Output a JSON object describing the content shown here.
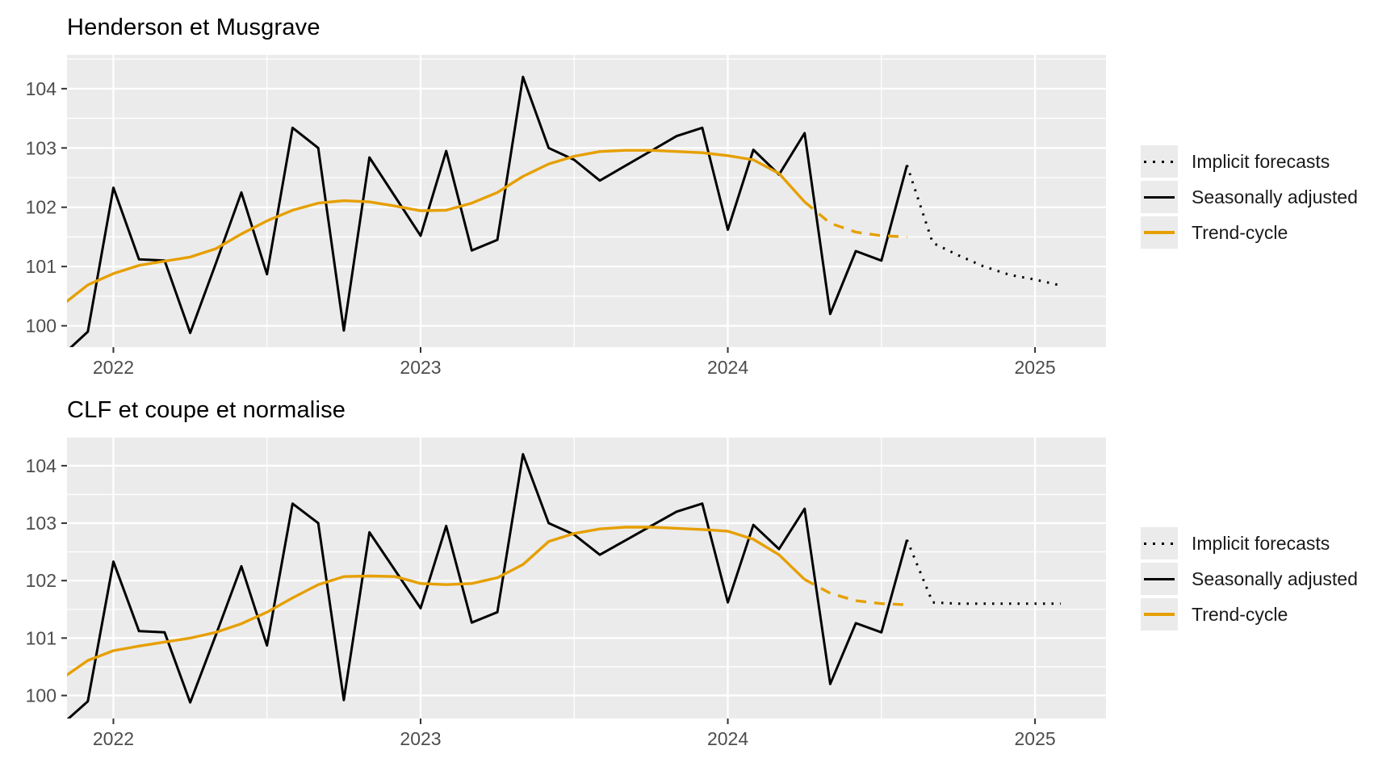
{
  "page": {
    "background": "#ffffff"
  },
  "colors": {
    "panel_bg": "#EBEBEB",
    "grid": "#FFFFFF",
    "axis_text": "#4D4D4D",
    "tick_mark": "#333333",
    "title": "#000000",
    "black_series": "#000000",
    "orange_series": "#E69F00",
    "legend_key_bg": "#EBEBEB"
  },
  "legend": {
    "items": [
      {
        "label": "Implicit forecasts",
        "style": "dotted",
        "color": "#000000"
      },
      {
        "label": "Seasonally adjusted",
        "style": "solid",
        "color": "#000000"
      },
      {
        "label": "Trend-cycle",
        "style": "solid",
        "color": "#E69F00"
      }
    ]
  },
  "chart_data": [
    {
      "type": "line",
      "title": "Henderson et Musgrave",
      "xlabel": "",
      "ylabel": "",
      "grid": true,
      "legend_position": "right",
      "x_ticks": [
        2022,
        2023,
        2024,
        2025
      ],
      "x_tick_labels": [
        "2022",
        "2023",
        "2024",
        "2025"
      ],
      "y_ticks": [
        100,
        101,
        102,
        103,
        104
      ],
      "y_tick_labels": [
        "100",
        "101",
        "102",
        "103",
        "104"
      ],
      "x_range": [
        2021.849,
        2025.231
      ],
      "y_range": [
        99.64,
        104.57
      ],
      "series": [
        {
          "name": "Seasonally adjusted",
          "style": "solid",
          "color": "#000000",
          "width": 3,
          "x": [
            2021.8333,
            2021.9167,
            2022.0,
            2022.0833,
            2022.1667,
            2022.25,
            2022.3333,
            2022.4167,
            2022.5,
            2022.5833,
            2022.6667,
            2022.75,
            2022.8333,
            2022.9167,
            2023.0,
            2023.0833,
            2023.1667,
            2023.25,
            2023.3333,
            2023.4167,
            2023.5,
            2023.5833,
            2023.6667,
            2023.75,
            2023.8333,
            2023.9167,
            2024.0,
            2024.0833,
            2024.1667,
            2024.25,
            2024.3333,
            2024.4167,
            2024.5,
            2024.5833
          ],
          "y": [
            99.5,
            99.9,
            102.33,
            101.12,
            101.1,
            99.88,
            101.05,
            102.25,
            100.87,
            103.34,
            103.0,
            99.92,
            102.84,
            102.18,
            101.52,
            102.95,
            101.27,
            101.45,
            104.2,
            103.0,
            102.8,
            102.45,
            102.7,
            102.95,
            103.2,
            103.34,
            101.62,
            102.97,
            102.55,
            103.25,
            100.2,
            101.26,
            101.1,
            102.71
          ]
        },
        {
          "name": "Trend-cycle",
          "style": "solid",
          "color": "#E69F00",
          "width": 3.4,
          "x": [
            2021.8333,
            2021.9167,
            2022.0,
            2022.0833,
            2022.1667,
            2022.25,
            2022.3333,
            2022.4167,
            2022.5,
            2022.5833,
            2022.6667,
            2022.75,
            2022.8333,
            2022.9167,
            2023.0,
            2023.0833,
            2023.1667,
            2023.25,
            2023.3333,
            2023.4167,
            2023.5,
            2023.5833,
            2023.6667,
            2023.75,
            2023.8333,
            2023.9167,
            2024.0,
            2024.0833,
            2024.1667,
            2024.25
          ],
          "y": [
            100.35,
            100.69,
            100.88,
            101.02,
            101.09,
            101.16,
            101.3,
            101.55,
            101.77,
            101.95,
            102.07,
            102.11,
            102.09,
            102.02,
            101.94,
            101.95,
            102.07,
            102.25,
            102.52,
            102.73,
            102.86,
            102.94,
            102.96,
            102.96,
            102.94,
            102.92,
            102.87,
            102.8,
            102.57,
            102.09
          ]
        },
        {
          "name": "Trend-cycle forecast",
          "style": "dashed",
          "color": "#E69F00",
          "width": 3.4,
          "x": [
            2024.25,
            2024.3333,
            2024.4167,
            2024.5,
            2024.5833
          ],
          "y": [
            102.09,
            101.73,
            101.58,
            101.52,
            101.5
          ]
        },
        {
          "name": "Implicit forecasts",
          "style": "dotted",
          "color": "#000000",
          "width": 3,
          "x": [
            2024.5833,
            2024.6667,
            2024.75,
            2024.8333,
            2024.9167,
            2025.0,
            2025.0833
          ],
          "y": [
            102.71,
            101.4,
            101.19,
            101.0,
            100.86,
            100.78,
            100.68
          ]
        }
      ]
    },
    {
      "type": "line",
      "title": "CLF et coupe et normalise",
      "xlabel": "",
      "ylabel": "",
      "grid": true,
      "legend_position": "right",
      "x_ticks": [
        2022,
        2023,
        2024,
        2025
      ],
      "x_tick_labels": [
        "2022",
        "2023",
        "2024",
        "2025"
      ],
      "y_ticks": [
        100,
        101,
        102,
        103,
        104
      ],
      "y_tick_labels": [
        "100",
        "101",
        "102",
        "103",
        "104"
      ],
      "x_range": [
        2021.849,
        2025.231
      ],
      "y_range": [
        99.6,
        104.49
      ],
      "series": [
        {
          "name": "Seasonally adjusted",
          "style": "solid",
          "color": "#000000",
          "width": 3,
          "x": [
            2021.8333,
            2021.9167,
            2022.0,
            2022.0833,
            2022.1667,
            2022.25,
            2022.3333,
            2022.4167,
            2022.5,
            2022.5833,
            2022.6667,
            2022.75,
            2022.8333,
            2022.9167,
            2023.0,
            2023.0833,
            2023.1667,
            2023.25,
            2023.3333,
            2023.4167,
            2023.5,
            2023.5833,
            2023.6667,
            2023.75,
            2023.8333,
            2023.9167,
            2024.0,
            2024.0833,
            2024.1667,
            2024.25,
            2024.3333,
            2024.4167,
            2024.5,
            2024.5833
          ],
          "y": [
            99.5,
            99.9,
            102.33,
            101.12,
            101.1,
            99.88,
            101.05,
            102.25,
            100.87,
            103.34,
            103.0,
            99.92,
            102.84,
            102.18,
            101.52,
            102.95,
            101.27,
            101.45,
            104.2,
            103.0,
            102.8,
            102.45,
            102.7,
            102.95,
            103.2,
            103.34,
            101.62,
            102.97,
            102.55,
            103.25,
            100.2,
            101.26,
            101.1,
            102.71
          ]
        },
        {
          "name": "Trend-cycle",
          "style": "solid",
          "color": "#E69F00",
          "width": 3.4,
          "x": [
            2021.8333,
            2021.9167,
            2022.0,
            2022.0833,
            2022.1667,
            2022.25,
            2022.3333,
            2022.4167,
            2022.5,
            2022.5833,
            2022.6667,
            2022.75,
            2022.8333,
            2022.9167,
            2023.0,
            2023.0833,
            2023.1667,
            2023.25,
            2023.3333,
            2023.4167,
            2023.5,
            2023.5833,
            2023.6667,
            2023.75,
            2023.8333,
            2023.9167,
            2024.0,
            2024.0833,
            2024.1667,
            2024.25
          ],
          "y": [
            100.3,
            100.61,
            100.78,
            100.86,
            100.93,
            101.0,
            101.1,
            101.25,
            101.45,
            101.7,
            101.93,
            102.07,
            102.08,
            102.07,
            101.95,
            101.93,
            101.95,
            102.05,
            102.28,
            102.68,
            102.82,
            102.9,
            102.93,
            102.93,
            102.91,
            102.89,
            102.86,
            102.72,
            102.45,
            102.02
          ],
          "y_note": "CLF trend"
        },
        {
          "name": "Trend-cycle forecast",
          "style": "dashed",
          "color": "#E69F00",
          "width": 3.4,
          "x": [
            2024.25,
            2024.3333,
            2024.4167,
            2024.5,
            2024.5833
          ],
          "y": [
            102.02,
            101.78,
            101.65,
            101.6,
            101.58
          ]
        },
        {
          "name": "Implicit forecasts",
          "style": "dotted",
          "color": "#000000",
          "width": 3,
          "x": [
            2024.5833,
            2024.6667,
            2024.75,
            2024.8333,
            2024.9167,
            2025.0,
            2025.0833
          ],
          "y": [
            102.71,
            101.62,
            101.6,
            101.6,
            101.6,
            101.6,
            101.6
          ]
        }
      ]
    }
  ]
}
